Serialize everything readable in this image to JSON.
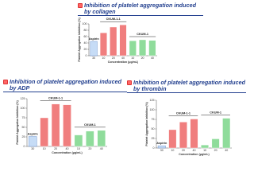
{
  "chart_data": [
    {
      "type": "bar",
      "title": "Inhibition of platelet aggregation induced by collagen",
      "ylabel": "Platelet Aggregation Inhibition (%)",
      "xlabel": "Concentration (μg/mL)",
      "categories": [
        "30",
        "10",
        "20",
        "40",
        "10",
        "20",
        "40"
      ],
      "values": [
        45,
        72,
        90,
        97,
        47,
        50,
        48
      ],
      "colors": [
        "#c6dcf6",
        "#f07e7e",
        "#f07e7e",
        "#f07e7e",
        "#8fdc9b",
        "#8fdc9b",
        "#8fdc9b"
      ],
      "annotations": [
        "Aspirin",
        "CKUM-1-1",
        "CKUM-1"
      ],
      "ylim": [
        0,
        100
      ],
      "yticks": [
        0,
        20,
        40,
        60,
        80,
        100
      ]
    },
    {
      "type": "bar",
      "title": "Inhibition of platelet aggregation induced by ADP",
      "ylabel": "Platelet Aggregation Inhibition (%)",
      "xlabel": "Concentration (μg/mL)",
      "categories": [
        "30",
        "10",
        "20",
        "40",
        "10",
        "20",
        "40"
      ],
      "values": [
        26,
        75,
        111,
        109,
        30,
        40,
        42
      ],
      "colors": [
        "#c6dcf6",
        "#f07e7e",
        "#f07e7e",
        "#f07e7e",
        "#8fdc9b",
        "#8fdc9b",
        "#8fdc9b"
      ],
      "annotations": [
        "Aspirin",
        "CKUM-1-1",
        "CKUM-1"
      ],
      "ylim": [
        0,
        125
      ],
      "yticks": [
        0,
        25,
        50,
        75,
        100,
        125
      ]
    },
    {
      "type": "bar",
      "title": "Inhibition of platelet aggregation induced by thrombin",
      "ylabel": "Platelet Aggregation Inhibition (%)",
      "xlabel": "Concentration (μg/mL)",
      "categories": [
        "30",
        "10",
        "20",
        "40",
        "10",
        "20",
        "40"
      ],
      "values": [
        6,
        48,
        68,
        76,
        8,
        24,
        78
      ],
      "colors": [
        "#c6dcf6",
        "#f07e7e",
        "#f07e7e",
        "#f07e7e",
        "#8fdc9b",
        "#8fdc9b",
        "#8fdc9b"
      ],
      "annotations": [
        "Aspirin",
        "CKUM-1-1",
        "CKUM-1"
      ],
      "ylim": [
        0,
        125
      ],
      "yticks": [
        0,
        25,
        50,
        75,
        100,
        125
      ]
    }
  ]
}
